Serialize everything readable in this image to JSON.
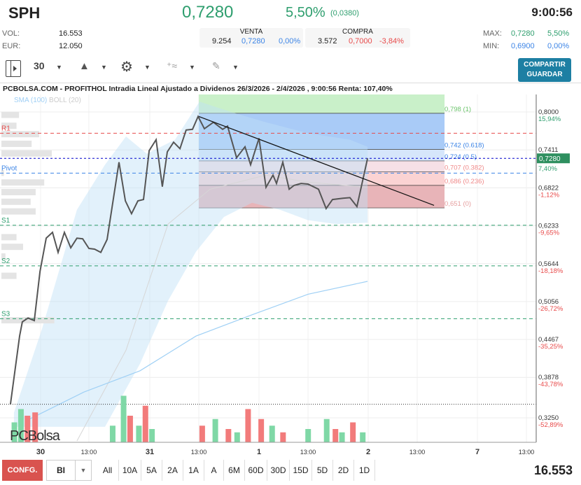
{
  "header": {
    "symbol": "SPH",
    "price": "0,7280",
    "change_pct": "5,50%",
    "change_abs": "(0,0380)",
    "time": "9:00:56"
  },
  "stats": {
    "vol_label": "VOL:",
    "vol": "16.553",
    "eur_label": "EUR:",
    "eur": "12.050",
    "max_label": "MAX:",
    "max": "0,7280",
    "max_pct": "5,50%",
    "min_label": "MIN:",
    "min": "0,6900",
    "min_pct": "0,00%"
  },
  "venta": {
    "label": "VENTA",
    "qty": "9.254",
    "price": "0,7280",
    "pct": "0,00%"
  },
  "compra": {
    "label": "COMPRA",
    "qty": "3.572",
    "price": "0,7000",
    "pct": "-3,84%"
  },
  "toolbar": {
    "period": "30",
    "share_label": "COMPARTIR",
    "save_label": "GUARDAR"
  },
  "chart_title": "PCBOLSA.COM - PROFITHOL Intradia Lineal Ajustado a Dividenos 26/3/2026 - 2/4/2026 , 9:00:56 Renta: 107,40%",
  "colors": {
    "up": "#2e9e6e",
    "down": "#e84b4b",
    "blue": "#3d85e6",
    "accent": "#1d7fa3"
  },
  "chart_data": {
    "type": "line",
    "legend": {
      "sma": "SMA (100)",
      "boll": "BOLL (20)"
    },
    "watermark": "PCBolsa",
    "x_ticks": [
      {
        "d": 0,
        "label": "30"
      },
      {
        "d": 0.442,
        "label": "13:00"
      },
      {
        "d": 1,
        "label": "31"
      },
      {
        "d": 1.449,
        "label": "13:00"
      },
      {
        "d": 2,
        "label": "1"
      },
      {
        "d": 2.449,
        "label": "13:00"
      },
      {
        "d": 3,
        "label": "2"
      },
      {
        "d": 3.449,
        "label": "13:00"
      },
      {
        "d": 4,
        "label": "7"
      },
      {
        "d": 4.449,
        "label": "13:00"
      }
    ],
    "y_ticks": [
      {
        "v": 0.8,
        "label": "0,8000",
        "pct": "15,94%"
      },
      {
        "v": 0.7411,
        "label": "0,7411",
        "pct": "7,40%"
      },
      {
        "v": 0.6822,
        "label": "0,6822",
        "pct": "-1,12%"
      },
      {
        "v": 0.6233,
        "label": "0,6233",
        "pct": "-9,65%"
      },
      {
        "v": 0.5644,
        "label": "0,5644",
        "pct": "-18,18%"
      },
      {
        "v": 0.5056,
        "label": "0,5056",
        "pct": "-26,72%"
      },
      {
        "v": 0.4467,
        "label": "0,4467",
        "pct": "-35,25%"
      },
      {
        "v": 0.3878,
        "label": "0,3878",
        "pct": "-43,78%"
      },
      {
        "v": 0.325,
        "label": "0,3250",
        "pct": "-52,89%"
      }
    ],
    "last_price": {
      "v": 0.728,
      "label": "0,7280"
    },
    "price": [
      [
        -0.276,
        0.346
      ],
      [
        -0.192,
        0.452
      ],
      [
        -0.167,
        0.474
      ],
      [
        -0.115,
        0.48
      ],
      [
        -0.058,
        0.476
      ],
      [
        -0.006,
        0.552
      ],
      [
        0.051,
        0.604
      ],
      [
        0.109,
        0.613
      ],
      [
        0.16,
        0.582
      ],
      [
        0.218,
        0.613
      ],
      [
        0.276,
        0.589
      ],
      [
        0.333,
        0.604
      ],
      [
        0.385,
        0.603
      ],
      [
        0.442,
        0.588
      ],
      [
        0.494,
        0.587
      ],
      [
        0.551,
        0.582
      ],
      [
        0.609,
        0.602
      ],
      [
        0.718,
        0.722
      ],
      [
        0.776,
        0.662
      ],
      [
        0.833,
        0.642
      ],
      [
        0.891,
        0.662
      ],
      [
        0.942,
        0.664
      ],
      [
        0.994,
        0.74
      ],
      [
        1.058,
        0.757
      ],
      [
        1.115,
        0.684
      ],
      [
        1.16,
        0.738
      ],
      [
        1.218,
        0.753
      ],
      [
        1.276,
        0.743
      ],
      [
        1.333,
        0.772
      ],
      [
        1.391,
        0.773
      ],
      [
        1.442,
        0.793
      ],
      [
        1.5,
        0.774
      ],
      [
        1.583,
        0.784
      ],
      [
        1.667,
        0.773
      ],
      [
        1.712,
        0.778
      ],
      [
        1.795,
        0.729
      ],
      [
        1.872,
        0.746
      ],
      [
        1.923,
        0.718
      ],
      [
        2.0,
        0.759
      ],
      [
        2.064,
        0.683
      ],
      [
        2.128,
        0.702
      ],
      [
        2.16,
        0.689
      ],
      [
        2.218,
        0.722
      ],
      [
        2.276,
        0.68
      ],
      [
        2.321,
        0.686
      ],
      [
        2.385,
        0.689
      ],
      [
        2.449,
        0.688
      ],
      [
        2.545,
        0.68
      ],
      [
        2.615,
        0.65
      ],
      [
        2.673,
        0.664
      ],
      [
        2.769,
        0.666
      ],
      [
        2.833,
        0.667
      ],
      [
        2.897,
        0.653
      ],
      [
        2.994,
        0.728
      ]
    ],
    "sma": [
      [
        -0.115,
        0.322
      ],
      [
        0.397,
        0.365
      ],
      [
        0.91,
        0.398
      ],
      [
        1.423,
        0.452
      ],
      [
        1.936,
        0.485
      ],
      [
        2.449,
        0.517
      ],
      [
        2.994,
        0.537
      ]
    ],
    "boll_upper": [
      [
        -0.244,
        0.333
      ],
      [
        0.013,
        0.463
      ],
      [
        0.333,
        0.648
      ],
      [
        0.59,
        0.718
      ],
      [
        0.782,
        0.762
      ],
      [
        0.974,
        0.735
      ],
      [
        1.231,
        0.757
      ],
      [
        1.455,
        0.816
      ],
      [
        1.744,
        0.8
      ],
      [
        2.064,
        0.784
      ],
      [
        2.449,
        0.767
      ],
      [
        2.833,
        0.757
      ],
      [
        2.994,
        0.746
      ]
    ],
    "boll_lower": [
      [
        -0.244,
        0.311
      ],
      [
        0.269,
        0.311
      ],
      [
        0.59,
        0.311
      ],
      [
        0.91,
        0.409
      ],
      [
        1.167,
        0.507
      ],
      [
        1.423,
        0.583
      ],
      [
        1.679,
        0.637
      ],
      [
        1.936,
        0.659
      ],
      [
        2.192,
        0.648
      ],
      [
        2.449,
        0.632
      ],
      [
        2.705,
        0.626
      ],
      [
        2.994,
        0.628
      ]
    ],
    "boll_mid": [
      [
        0.333,
        0.289
      ],
      [
        0.782,
        0.43
      ],
      [
        1.167,
        0.626
      ],
      [
        1.551,
        0.68
      ],
      [
        2.064,
        0.702
      ],
      [
        2.449,
        0.691
      ],
      [
        2.994,
        0.683
      ]
    ],
    "fibonacci": {
      "from_d": 1.449,
      "to_d": 3.699,
      "levels": [
        {
          "v": 0.798,
          "label": "0,798 (1)",
          "color": "#6cc46c"
        },
        {
          "v": 0.742,
          "label": "0,742 (0.618)",
          "color": "#3d85e6"
        },
        {
          "v": 0.724,
          "label": "0,724 (0.5)",
          "color": "#3d85e6"
        },
        {
          "v": 0.707,
          "label": "0,707 (0.382)",
          "color": "#f08a8a"
        },
        {
          "v": 0.686,
          "label": "0,686 (0.236)",
          "color": "#f08a8a"
        },
        {
          "v": 0.651,
          "label": "0,651 (0)",
          "color": "#e6a0a0"
        }
      ]
    },
    "trendline": [
      [
        1.449,
        0.793
      ],
      [
        3.603,
        0.655
      ]
    ],
    "pivots": [
      {
        "name": "R1",
        "v": 0.767,
        "color": "#e84b4b"
      },
      {
        "name": "Pivot",
        "v": 0.705,
        "color": "#3d85e6"
      },
      {
        "name": "S1",
        "v": 0.624,
        "color": "#2e9e6e"
      },
      {
        "name": "S2",
        "v": 0.561,
        "color": "#2e9e6e"
      },
      {
        "name": "S3",
        "v": 0.479,
        "color": "#2e9e6e"
      }
    ],
    "prev_close": 0.346,
    "volume": [
      [
        -0.24,
        0.3,
        "up"
      ],
      [
        -0.18,
        0.5,
        "up"
      ],
      [
        -0.12,
        0.4,
        "down"
      ],
      [
        -0.05,
        0.45,
        "down"
      ],
      [
        0.66,
        0.25,
        "up"
      ],
      [
        0.76,
        0.7,
        "up"
      ],
      [
        0.82,
        0.4,
        "down"
      ],
      [
        0.9,
        0.25,
        "up"
      ],
      [
        0.96,
        0.55,
        "down"
      ],
      [
        1.02,
        0.2,
        "up"
      ],
      [
        1.48,
        0.25,
        "down"
      ],
      [
        1.6,
        0.35,
        "up"
      ],
      [
        1.72,
        0.2,
        "down"
      ],
      [
        1.8,
        0.15,
        "up"
      ],
      [
        1.9,
        0.5,
        "down"
      ],
      [
        2.02,
        0.35,
        "down"
      ],
      [
        2.12,
        0.25,
        "up"
      ],
      [
        2.22,
        0.15,
        "down"
      ],
      [
        2.45,
        0.2,
        "up"
      ],
      [
        2.62,
        0.35,
        "up"
      ],
      [
        2.7,
        0.2,
        "down"
      ],
      [
        2.76,
        0.15,
        "up"
      ],
      [
        2.86,
        0.3,
        "down"
      ],
      [
        2.95,
        0.15,
        "up"
      ]
    ],
    "volume_profile": [
      [
        0.795,
        0.35
      ],
      [
        0.778,
        0.3
      ],
      [
        0.765,
        0.75
      ],
      [
        0.75,
        0.6
      ],
      [
        0.735,
        1.0
      ],
      [
        0.705,
        0.05
      ],
      [
        0.69,
        0.85
      ],
      [
        0.675,
        0.68
      ],
      [
        0.66,
        0.58
      ],
      [
        0.645,
        0.68
      ],
      [
        0.605,
        0.3
      ],
      [
        0.59,
        0.43
      ],
      [
        0.575,
        0.08
      ],
      [
        0.545,
        0.3
      ],
      [
        0.476,
        1.05
      ]
    ]
  },
  "footer": {
    "conf": "CONFG.",
    "bi": "BI",
    "ranges": [
      "All",
      "10A",
      "5A",
      "2A",
      "1A",
      "A",
      "6M",
      "60D",
      "30D",
      "15D",
      "5D",
      "2D",
      "1D"
    ],
    "volume": "16.553"
  }
}
